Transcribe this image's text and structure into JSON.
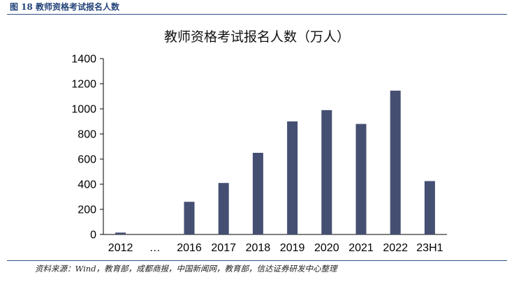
{
  "figure": {
    "label": "图 18   教师资格考试报名人数",
    "source": "资料来源：Wind，教育部，成都商报，中国新闻网，教育部，信达证券研发中心整理"
  },
  "chart_data": {
    "type": "bar",
    "title": "教师资格考试报名人数（万人）",
    "categories": [
      "2012",
      "…",
      "2016",
      "2017",
      "2018",
      "2019",
      "2020",
      "2021",
      "2022",
      "23H1"
    ],
    "values": [
      15,
      null,
      260,
      410,
      650,
      900,
      990,
      880,
      1145,
      425
    ],
    "ylim": [
      0,
      1400
    ],
    "yticks": [
      0,
      200,
      400,
      600,
      800,
      1000,
      1200,
      1400
    ],
    "bar_color": "#454f72",
    "grid": false,
    "legend": "none"
  }
}
